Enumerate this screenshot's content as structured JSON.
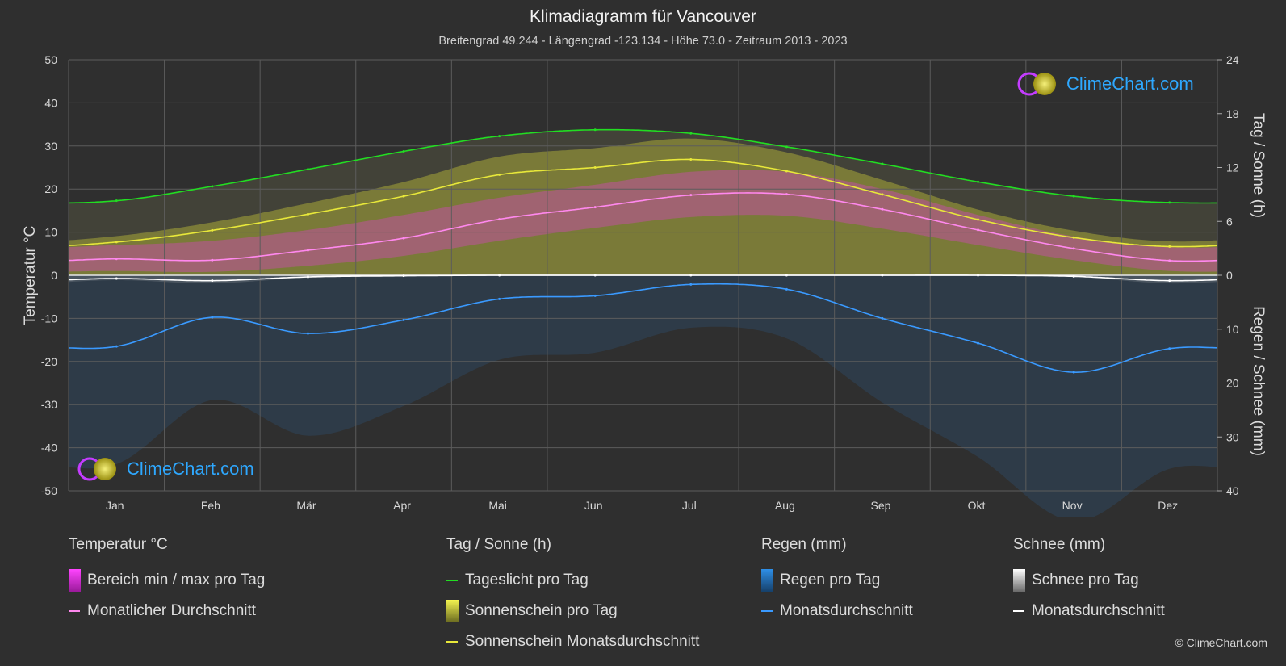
{
  "title": "Klimadiagramm für Vancouver",
  "subtitle": "Breitengrad 49.244 - Längengrad -123.134 - Höhe 73.0 - Zeitraum 2013 - 2023",
  "logo_text": "ClimeChart.com",
  "copyright": "© ClimeChart.com",
  "colors": {
    "background": "#2f2f2f",
    "daylight": "#22dd22",
    "sunshine_fill": "#c8c83a",
    "sunshine_avg": "#e8e83a",
    "temp_range": "#e040d0",
    "temp_avg": "#ff88ee",
    "rain": "#2e7fd0",
    "rain_avg": "#3a9aff",
    "snow": "#cfcfcf",
    "snow_avg": "#ffffff"
  },
  "legend": {
    "temperature": {
      "heading": "Temperatur °C",
      "items": [
        {
          "label": "Bereich min / max pro Tag",
          "swatch": "box",
          "icon": "magenta-gradient-swatch"
        },
        {
          "label": "Monatlicher Durchschnitt",
          "swatch": "line",
          "icon": "pink-line-swatch"
        }
      ]
    },
    "sun": {
      "heading": "Tag / Sonne (h)",
      "items": [
        {
          "label": "Tageslicht pro Tag",
          "swatch": "line",
          "icon": "green-line-swatch"
        },
        {
          "label": "Sonnenschein pro Tag",
          "swatch": "box",
          "icon": "yellow-gradient-swatch"
        },
        {
          "label": "Sonnenschein Monatsdurchschnitt",
          "swatch": "line",
          "icon": "yellow-line-swatch"
        }
      ]
    },
    "rain": {
      "heading": "Regen (mm)",
      "items": [
        {
          "label": "Regen pro Tag",
          "swatch": "box",
          "icon": "blue-gradient-swatch"
        },
        {
          "label": "Monatsdurchschnitt",
          "swatch": "line",
          "icon": "blue-line-swatch"
        }
      ]
    },
    "snow": {
      "heading": "Schnee (mm)",
      "items": [
        {
          "label": "Schnee pro Tag",
          "swatch": "box",
          "icon": "white-gradient-swatch"
        },
        {
          "label": "Monatsdurchschnitt",
          "swatch": "line",
          "icon": "white-line-swatch"
        }
      ]
    }
  },
  "chart_data": {
    "type": "line",
    "categories": [
      "Jan",
      "Feb",
      "Mär",
      "Apr",
      "Mai",
      "Jun",
      "Jul",
      "Aug",
      "Sep",
      "Okt",
      "Nov",
      "Dez"
    ],
    "y_left": {
      "label": "Temperatur °C",
      "range": [
        -50,
        50
      ],
      "ticks": [
        50,
        40,
        30,
        20,
        10,
        0,
        -10,
        -20,
        -30,
        -40,
        -50
      ]
    },
    "y_right_top": {
      "label": "Tag / Sonne (h)",
      "range": [
        0,
        24
      ],
      "ticks": [
        24,
        18,
        12,
        6,
        0
      ]
    },
    "y_right_bottom": {
      "label": "Regen / Schnee (mm)",
      "range": [
        0,
        40
      ],
      "ticks": [
        10,
        20,
        30,
        40
      ]
    },
    "grid": true,
    "series": [
      {
        "name": "Tageslicht pro Tag",
        "axis": "hours",
        "values": [
          8.3,
          9.9,
          11.8,
          13.8,
          15.5,
          16.2,
          15.8,
          14.3,
          12.4,
          10.4,
          8.8,
          8.1
        ]
      },
      {
        "name": "Sonnenschein Monatsdurchschnitt",
        "axis": "hours",
        "values": [
          3.7,
          5.0,
          6.8,
          8.8,
          11.2,
          12.0,
          12.9,
          11.6,
          9.0,
          6.2,
          4.2,
          3.2
        ]
      },
      {
        "name": "Monatlicher Durchschnitt",
        "axis": "temperature",
        "values": [
          3.8,
          3.5,
          5.8,
          8.6,
          13.0,
          15.8,
          18.6,
          18.8,
          15.3,
          10.5,
          6.2,
          3.4
        ]
      },
      {
        "name": "Temperatur min",
        "axis": "temperature",
        "values": [
          1.0,
          0.8,
          2.2,
          4.5,
          8.0,
          11.0,
          13.5,
          13.8,
          10.8,
          7.0,
          3.5,
          1.0
        ]
      },
      {
        "name": "Temperatur max",
        "axis": "temperature",
        "values": [
          7.0,
          8.0,
          10.5,
          14.0,
          18.0,
          21.0,
          24.0,
          24.0,
          20.0,
          14.0,
          9.0,
          6.5
        ]
      },
      {
        "name": "Regen Monatsdurchschnitt",
        "axis": "precip",
        "values": [
          13.2,
          7.8,
          10.8,
          8.3,
          4.4,
          3.8,
          1.7,
          2.6,
          8.0,
          12.6,
          18.0,
          13.6
        ]
      },
      {
        "name": "Schnee Monatsdurchschnitt",
        "axis": "precip",
        "values": [
          0.6,
          1.0,
          0.3,
          0.1,
          0.0,
          0.0,
          0.0,
          0.0,
          0.0,
          0.0,
          0.2,
          1.0
        ]
      }
    ]
  }
}
